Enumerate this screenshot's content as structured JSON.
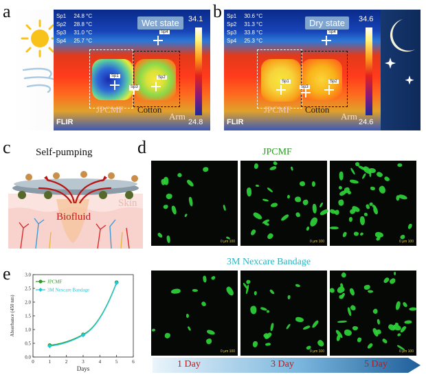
{
  "panels": {
    "a": {
      "label": "a",
      "state": "Wet state",
      "readouts": [
        {
          "spot": "Sp1",
          "value": "24.8 °C"
        },
        {
          "spot": "Sp2",
          "value": "28.8 °C"
        },
        {
          "spot": "Sp3",
          "value": "31.0 °C"
        },
        {
          "spot": "Sp4",
          "value": "25.7 °C"
        }
      ],
      "unit": "°C",
      "scale_max": "34.1",
      "scale_min": "24.8",
      "brand": "FLIR",
      "region_left": "JPCMF",
      "region_right": "Cotton",
      "arm": "Arm",
      "spots": [
        "Sp1",
        "Sp2",
        "Sp3",
        "Sp4"
      ]
    },
    "b": {
      "label": "b",
      "state": "Dry state",
      "readouts": [
        {
          "spot": "Sp1",
          "value": "30.6 °C"
        },
        {
          "spot": "Sp2",
          "value": "31.3 °C"
        },
        {
          "spot": "Sp3",
          "value": "33.8 °C"
        },
        {
          "spot": "Sp4",
          "value": "25.3 °C"
        }
      ],
      "unit": "°C",
      "scale_max": "34.6",
      "scale_min": "24.6",
      "brand": "FLIR",
      "region_left": "JPCMF",
      "region_right": "Cotton",
      "arm": "Arm",
      "spots": [
        "Sp1",
        "Sp2",
        "Sp3",
        "Sp4"
      ]
    },
    "c": {
      "label": "c",
      "title": "Self-pumping",
      "skin": "Skin",
      "biofluid": "Biofluid"
    },
    "d": {
      "label": "d",
      "top_title": "JPCMF",
      "bottom_title": "3M Nexcare Bandage",
      "scale_text": "0 μm 100",
      "days": [
        "1 Day",
        "3 Day",
        "5 Day"
      ]
    },
    "e": {
      "label": "e"
    }
  },
  "colors": {
    "jpcmf_green": "#2a9a22",
    "nexcare_cyan": "#20b8c8",
    "day_red": "#c01818",
    "cell_green": "#2fd43a"
  },
  "chart_data": {
    "type": "line",
    "x": [
      1,
      3,
      5
    ],
    "xlabel": "Days",
    "ylabel": "Absorbance (450 nm)",
    "xlim": [
      0,
      6
    ],
    "ylim": [
      0.0,
      3.0
    ],
    "xticks": [
      "0",
      "1",
      "2",
      "3",
      "4",
      "5",
      "6"
    ],
    "yticks": [
      "0.0",
      "0.5",
      "1.0",
      "1.5",
      "2.0",
      "2.5",
      "3.0"
    ],
    "legend_position": "top-left",
    "series": [
      {
        "name": "JPCMF",
        "values": [
          0.43,
          0.82,
          2.72
        ],
        "color": "#2a9a22",
        "marker": "circle"
      },
      {
        "name": "3M Nexcare Bandage",
        "values": [
          0.4,
          0.8,
          2.7
        ],
        "color": "#20c8d8",
        "marker": "diamond"
      }
    ]
  }
}
